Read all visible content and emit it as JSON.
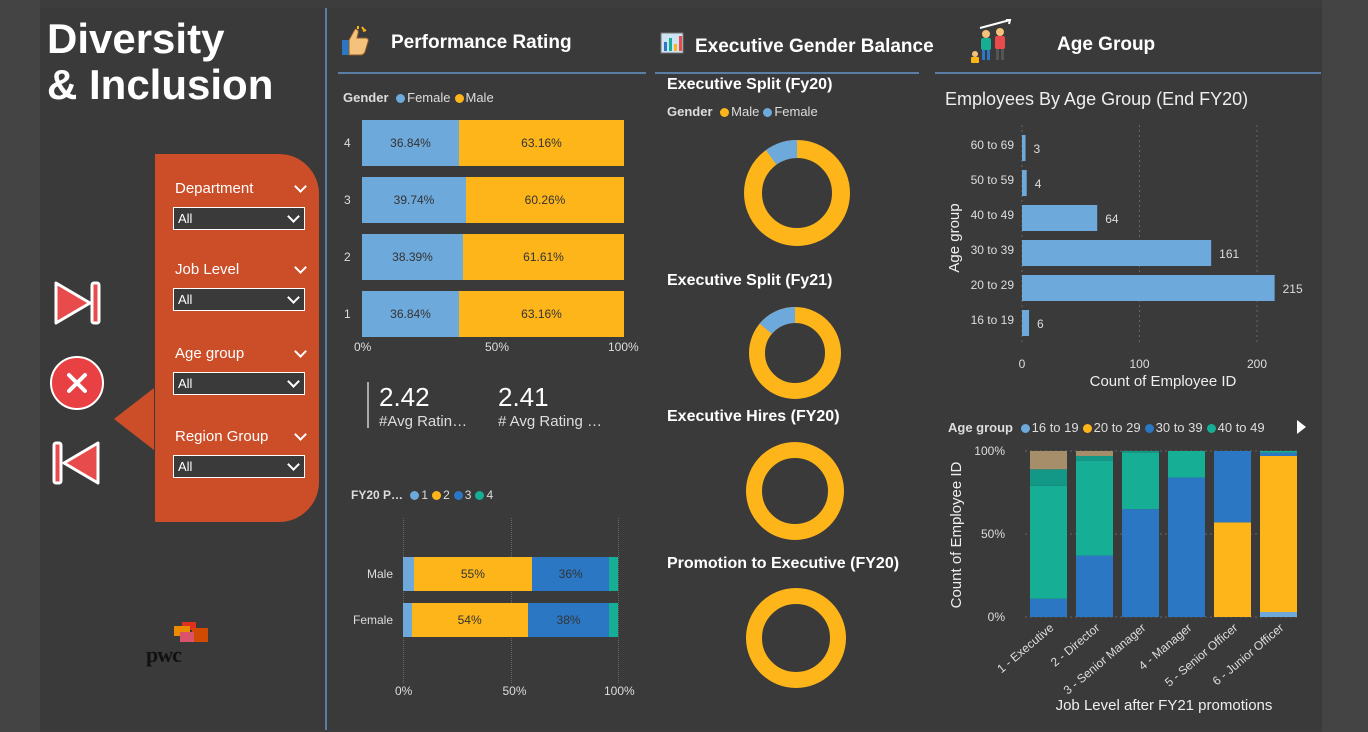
{
  "page_title": {
    "line1": "Diversity",
    "line2": "& Inclusion"
  },
  "logo": {
    "text": "pwc"
  },
  "slicers": [
    {
      "label": "Department",
      "value": "All"
    },
    {
      "label": "Job Level",
      "value": "All"
    },
    {
      "label": "Age group",
      "value": "All"
    },
    {
      "label": "Region Group",
      "value": "All"
    }
  ],
  "nav": {
    "next": "skip-forward-icon",
    "close": "close-icon",
    "prev": "skip-back-icon"
  },
  "sections": {
    "performance": {
      "title": "Performance Rating",
      "icon": "thumbs-up-icon"
    },
    "executive": {
      "title": "Executive Gender Balance",
      "icon": "chart-icon"
    },
    "age": {
      "title": "Age Group",
      "icon": "people-icon"
    }
  },
  "colors": {
    "female": "#6ea9dc",
    "male": "#fdb51a",
    "c1": "#6ea9dc",
    "c2": "#fdb51a",
    "c3": "#2b77c4",
    "c4": "#16ae95",
    "panel": "#cc4e28",
    "divider": "#5a7ea6"
  },
  "perf_chart": {
    "legend_title": "Gender",
    "legend": [
      {
        "name": "Female",
        "color": "#6ea9dc"
      },
      {
        "name": "Male",
        "color": "#fdb51a"
      }
    ],
    "rows": [
      {
        "label": "4",
        "female": "36.84%",
        "male": "63.16%",
        "female_frac": 0.3684
      },
      {
        "label": "3",
        "female": "39.74%",
        "male": "60.26%",
        "female_frac": 0.3974
      },
      {
        "label": "2",
        "female": "38.39%",
        "male": "61.61%",
        "female_frac": 0.3839
      },
      {
        "label": "1",
        "female": "36.84%",
        "male": "63.16%",
        "female_frac": 0.3684
      }
    ],
    "ticks": [
      "0%",
      "50%",
      "100%"
    ]
  },
  "kpis": [
    {
      "value": "2.42",
      "label": "#Avg Ratin…"
    },
    {
      "value": "2.41",
      "label": "# Avg Rating …"
    }
  ],
  "fy20_chart": {
    "legend_title": "FY20 P…",
    "legend": [
      {
        "name": "1",
        "color": "#6ea9dc"
      },
      {
        "name": "2",
        "color": "#fdb51a"
      },
      {
        "name": "3",
        "color": "#2b77c4"
      },
      {
        "name": "4",
        "color": "#16ae95"
      }
    ],
    "rows": [
      {
        "label": "Male",
        "r1": 0.05,
        "r2": 0.55,
        "r3": 0.36,
        "r4": 0.04,
        "l2": "55%",
        "l3": "36%"
      },
      {
        "label": "Female",
        "r1": 0.04,
        "r2": 0.54,
        "r3": 0.38,
        "r4": 0.04,
        "l2": "54%",
        "l3": "38%"
      }
    ],
    "ticks": [
      "0%",
      "50%",
      "100%"
    ]
  },
  "exec": {
    "split20_title": "Executive Split (Fy20)",
    "legend_title": "Gender",
    "legend": [
      {
        "name": "Male",
        "color": "#fdb51a"
      },
      {
        "name": "Female",
        "color": "#6ea9dc"
      }
    ],
    "donuts": [
      {
        "title": "Executive Split (Fy20)",
        "female_frac": 0.1
      },
      {
        "title": "Executive Split (Fy21)",
        "female_frac": 0.14
      },
      {
        "title": "Executive Hires (FY20)",
        "female_frac": 0.0
      },
      {
        "title": "Promotion to Executive (FY20)",
        "female_frac": 0.0
      }
    ]
  },
  "chart_data": [
    {
      "type": "bar",
      "title": "Employees By Age Group (End FY20)",
      "xlabel": "Count of Employee ID",
      "ylabel": "Age group",
      "categories": [
        "60 to 69",
        "50 to 59",
        "40 to 49",
        "30 to 39",
        "20 to 29",
        "16 to 19"
      ],
      "values": [
        3,
        4,
        64,
        161,
        215,
        6
      ],
      "xlim": [
        0,
        240
      ],
      "xticks": [
        "0",
        "100",
        "200"
      ]
    },
    {
      "type": "bar",
      "title": "",
      "xlabel": "Job Level after FY21 promotions",
      "ylabel": "Count of Employee ID",
      "legend_title": "Age group",
      "categories": [
        "1 - Executive",
        "2 - Director",
        "3 - Senior Manager",
        "4 - Manager",
        "5 - Senior Officer",
        "6 - Junior Officer"
      ],
      "series": [
        {
          "name": "16 to 19",
          "values": [
            0,
            0,
            0,
            0,
            0,
            3
          ]
        },
        {
          "name": "20 to 29",
          "values": [
            0,
            0,
            0,
            0,
            57,
            94
          ]
        },
        {
          "name": "30 to 39",
          "values": [
            11,
            37,
            65,
            84,
            43,
            2
          ]
        },
        {
          "name": "40 to 49",
          "values": [
            68,
            57,
            34,
            16,
            0,
            1
          ]
        },
        {
          "name": "",
          "values": [
            10,
            3,
            1,
            0,
            0,
            0
          ]
        },
        {
          "name": "",
          "values": [
            11,
            3,
            0,
            0,
            0,
            0
          ]
        }
      ],
      "series_colors": [
        "#6ea9dc",
        "#fdb51a",
        "#2b77c4",
        "#16ae95",
        "#139786",
        "#a78e6a"
      ],
      "yticks": [
        "0%",
        "50%",
        "100%"
      ],
      "ylim": [
        0,
        100
      ]
    }
  ]
}
